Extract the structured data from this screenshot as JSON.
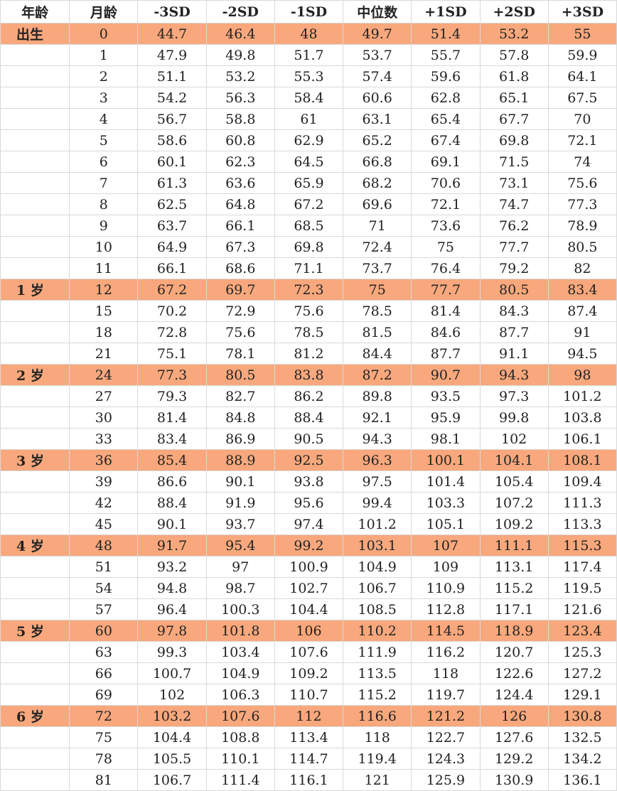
{
  "highlight_color": "#f8a87c",
  "headers": [
    "年龄",
    "月龄",
    "-3SD",
    "-2SD",
    "-1SD",
    "中位数",
    "+1SD",
    "+2SD",
    "+3SD"
  ],
  "rows": [
    {
      "age": "出生",
      "month": "0",
      "values": [
        "44.7",
        "46.4",
        "48",
        "49.7",
        "51.4",
        "53.2",
        "55"
      ],
      "highlight": true
    },
    {
      "age": "",
      "month": "1",
      "values": [
        "47.9",
        "49.8",
        "51.7",
        "53.7",
        "55.7",
        "57.8",
        "59.9"
      ]
    },
    {
      "age": "",
      "month": "2",
      "values": [
        "51.1",
        "53.2",
        "55.3",
        "57.4",
        "59.6",
        "61.8",
        "64.1"
      ]
    },
    {
      "age": "",
      "month": "3",
      "values": [
        "54.2",
        "56.3",
        "58.4",
        "60.6",
        "62.8",
        "65.1",
        "67.5"
      ]
    },
    {
      "age": "",
      "month": "4",
      "values": [
        "56.7",
        "58.8",
        "61",
        "63.1",
        "65.4",
        "67.7",
        "70"
      ]
    },
    {
      "age": "",
      "month": "5",
      "values": [
        "58.6",
        "60.8",
        "62.9",
        "65.2",
        "67.4",
        "69.8",
        "72.1"
      ]
    },
    {
      "age": "",
      "month": "6",
      "values": [
        "60.1",
        "62.3",
        "64.5",
        "66.8",
        "69.1",
        "71.5",
        "74"
      ]
    },
    {
      "age": "",
      "month": "7",
      "values": [
        "61.3",
        "63.6",
        "65.9",
        "68.2",
        "70.6",
        "73.1",
        "75.6"
      ]
    },
    {
      "age": "",
      "month": "8",
      "values": [
        "62.5",
        "64.8",
        "67.2",
        "69.6",
        "72.1",
        "74.7",
        "77.3"
      ]
    },
    {
      "age": "",
      "month": "9",
      "values": [
        "63.7",
        "66.1",
        "68.5",
        "71",
        "73.6",
        "76.2",
        "78.9"
      ]
    },
    {
      "age": "",
      "month": "10",
      "values": [
        "64.9",
        "67.3",
        "69.8",
        "72.4",
        "75",
        "77.7",
        "80.5"
      ]
    },
    {
      "age": "",
      "month": "11",
      "values": [
        "66.1",
        "68.6",
        "71.1",
        "73.7",
        "76.4",
        "79.2",
        "82"
      ]
    },
    {
      "age": "1 岁",
      "month": "12",
      "values": [
        "67.2",
        "69.7",
        "72.3",
        "75",
        "77.7",
        "80.5",
        "83.4"
      ],
      "highlight": true
    },
    {
      "age": "",
      "month": "15",
      "values": [
        "70.2",
        "72.9",
        "75.6",
        "78.5",
        "81.4",
        "84.3",
        "87.4"
      ]
    },
    {
      "age": "",
      "month": "18",
      "values": [
        "72.8",
        "75.6",
        "78.5",
        "81.5",
        "84.6",
        "87.7",
        "91"
      ]
    },
    {
      "age": "",
      "month": "21",
      "values": [
        "75.1",
        "78.1",
        "81.2",
        "84.4",
        "87.7",
        "91.1",
        "94.5"
      ]
    },
    {
      "age": "2 岁",
      "month": "24",
      "values": [
        "77.3",
        "80.5",
        "83.8",
        "87.2",
        "90.7",
        "94.3",
        "98"
      ],
      "highlight": true
    },
    {
      "age": "",
      "month": "27",
      "values": [
        "79.3",
        "82.7",
        "86.2",
        "89.8",
        "93.5",
        "97.3",
        "101.2"
      ]
    },
    {
      "age": "",
      "month": "30",
      "values": [
        "81.4",
        "84.8",
        "88.4",
        "92.1",
        "95.9",
        "99.8",
        "103.8"
      ]
    },
    {
      "age": "",
      "month": "33",
      "values": [
        "83.4",
        "86.9",
        "90.5",
        "94.3",
        "98.1",
        "102",
        "106.1"
      ]
    },
    {
      "age": "3 岁",
      "month": "36",
      "values": [
        "85.4",
        "88.9",
        "92.5",
        "96.3",
        "100.1",
        "104.1",
        "108.1"
      ],
      "highlight": true
    },
    {
      "age": "",
      "month": "39",
      "values": [
        "86.6",
        "90.1",
        "93.8",
        "97.5",
        "101.4",
        "105.4",
        "109.4"
      ]
    },
    {
      "age": "",
      "month": "42",
      "values": [
        "88.4",
        "91.9",
        "95.6",
        "99.4",
        "103.3",
        "107.2",
        "111.3"
      ]
    },
    {
      "age": "",
      "month": "45",
      "values": [
        "90.1",
        "93.7",
        "97.4",
        "101.2",
        "105.1",
        "109.2",
        "113.3"
      ]
    },
    {
      "age": "4 岁",
      "month": "48",
      "values": [
        "91.7",
        "95.4",
        "99.2",
        "103.1",
        "107",
        "111.1",
        "115.3"
      ],
      "highlight": true
    },
    {
      "age": "",
      "month": "51",
      "values": [
        "93.2",
        "97",
        "100.9",
        "104.9",
        "109",
        "113.1",
        "117.4"
      ]
    },
    {
      "age": "",
      "month": "54",
      "values": [
        "94.8",
        "98.7",
        "102.7",
        "106.7",
        "110.9",
        "115.2",
        "119.5"
      ]
    },
    {
      "age": "",
      "month": "57",
      "values": [
        "96.4",
        "100.3",
        "104.4",
        "108.5",
        "112.8",
        "117.1",
        "121.6"
      ]
    },
    {
      "age": "5 岁",
      "month": "60",
      "values": [
        "97.8",
        "101.8",
        "106",
        "110.2",
        "114.5",
        "118.9",
        "123.4"
      ],
      "highlight": true
    },
    {
      "age": "",
      "month": "63",
      "values": [
        "99.3",
        "103.4",
        "107.6",
        "111.9",
        "116.2",
        "120.7",
        "125.3"
      ]
    },
    {
      "age": "",
      "month": "66",
      "values": [
        "100.7",
        "104.9",
        "109.2",
        "113.5",
        "118",
        "122.6",
        "127.2"
      ]
    },
    {
      "age": "",
      "month": "69",
      "values": [
        "102",
        "106.3",
        "110.7",
        "115.2",
        "119.7",
        "124.4",
        "129.1"
      ]
    },
    {
      "age": "6 岁",
      "month": "72",
      "values": [
        "103.2",
        "107.6",
        "112",
        "116.6",
        "121.2",
        "126",
        "130.8"
      ],
      "highlight": true
    },
    {
      "age": "",
      "month": "75",
      "values": [
        "104.4",
        "108.8",
        "113.4",
        "118",
        "122.7",
        "127.6",
        "132.5"
      ]
    },
    {
      "age": "",
      "month": "78",
      "values": [
        "105.5",
        "110.1",
        "114.7",
        "119.4",
        "124.3",
        "129.2",
        "134.2"
      ]
    },
    {
      "age": "",
      "month": "81",
      "values": [
        "106.7",
        "111.4",
        "116.1",
        "121",
        "125.9",
        "130.9",
        "136.1"
      ]
    }
  ]
}
